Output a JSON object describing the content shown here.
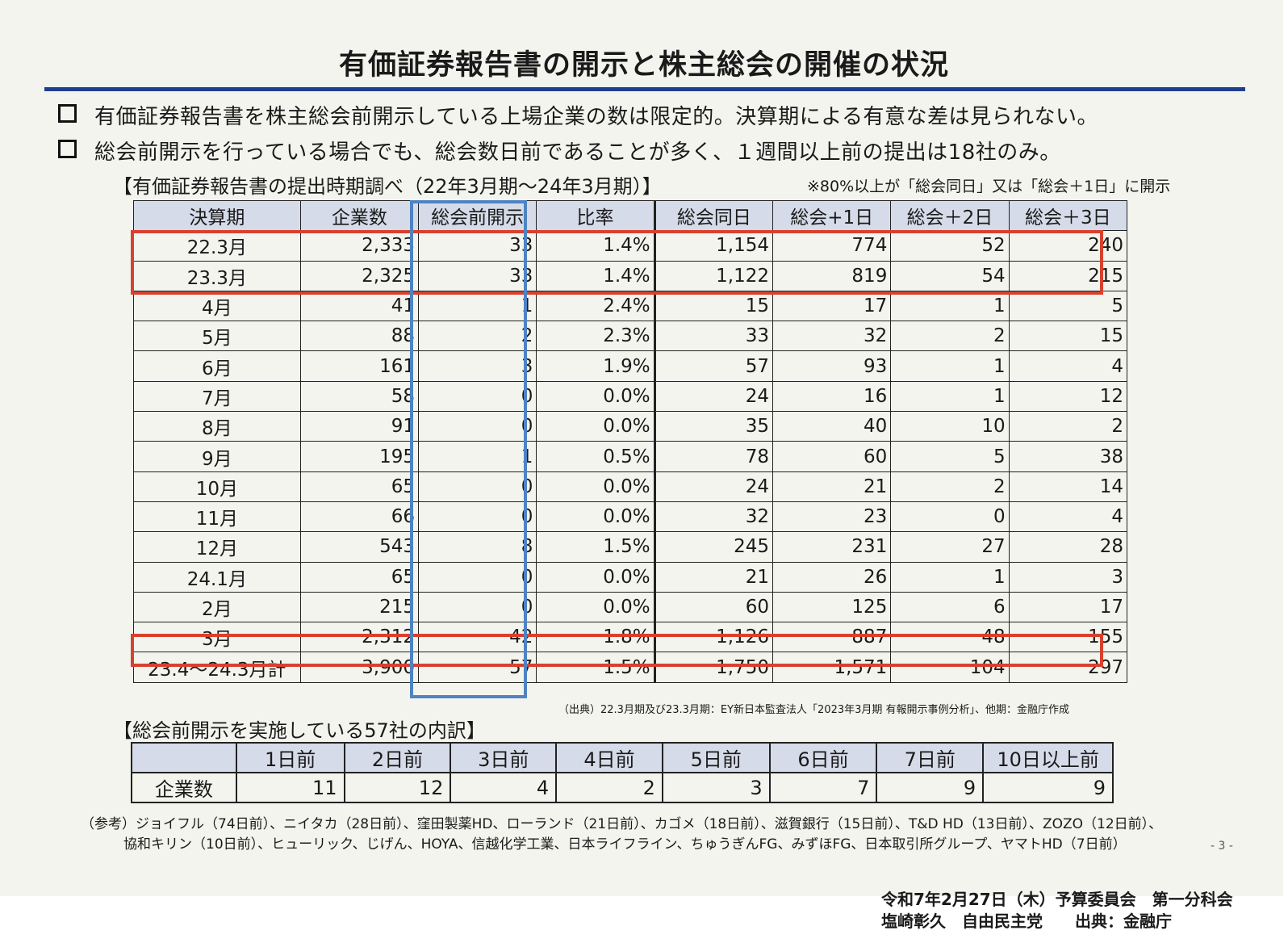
{
  "title": "有価証券報告書の開示と株主総会の開催の状況",
  "bullets": [
    "有価証券報告書を株主総会前開示している上場企業の数は限定的。決算期による有意な差は見られない。",
    "総会前開示を行っている場合でも、総会数日前であることが多く、１週間以上前の提出は18社のみ。"
  ],
  "main_table": {
    "heading": "【有価証券報告書の提出時期調べ（22年3月期～24年3月期）】",
    "note": "※80%以上が「総会同日」又は「総会＋1日」に開示",
    "columns": [
      "決算期",
      "企業数",
      "総会前開示",
      "比率",
      "総会同日",
      "総会+1日",
      "総会＋2日",
      "総会＋3日"
    ],
    "rows": [
      [
        "22.3月",
        "2,333",
        "33",
        "1.4%",
        "1,154",
        "774",
        "52",
        "240"
      ],
      [
        "23.3月",
        "2,325",
        "33",
        "1.4%",
        "1,122",
        "819",
        "54",
        "215"
      ],
      [
        "4月",
        "41",
        "1",
        "2.4%",
        "15",
        "17",
        "1",
        "5"
      ],
      [
        "5月",
        "88",
        "2",
        "2.3%",
        "33",
        "32",
        "2",
        "15"
      ],
      [
        "6月",
        "161",
        "3",
        "1.9%",
        "57",
        "93",
        "1",
        "4"
      ],
      [
        "7月",
        "58",
        "0",
        "0.0%",
        "24",
        "16",
        "1",
        "12"
      ],
      [
        "8月",
        "91",
        "0",
        "0.0%",
        "35",
        "40",
        "10",
        "2"
      ],
      [
        "9月",
        "195",
        "1",
        "0.5%",
        "78",
        "60",
        "5",
        "38"
      ],
      [
        "10月",
        "65",
        "0",
        "0.0%",
        "24",
        "21",
        "2",
        "14"
      ],
      [
        "11月",
        "66",
        "0",
        "0.0%",
        "32",
        "23",
        "0",
        "4"
      ],
      [
        "12月",
        "543",
        "8",
        "1.5%",
        "245",
        "231",
        "27",
        "28"
      ],
      [
        "24.1月",
        "65",
        "0",
        "0.0%",
        "21",
        "26",
        "1",
        "3"
      ],
      [
        "2月",
        "215",
        "0",
        "0.0%",
        "60",
        "125",
        "6",
        "17"
      ],
      [
        "3月",
        "2,312",
        "42",
        "1.8%",
        "1,126",
        "887",
        "48",
        "155"
      ],
      [
        "23.4～24.3月計",
        "3,900",
        "57",
        "1.5%",
        "1,750",
        "1,571",
        "104",
        "297"
      ]
    ],
    "source": "（出典）22.3月期及び23.3月期：EY新日本監査法人「2023年3月期 有報開示事例分析」、他期：金融庁作成"
  },
  "breakdown_table": {
    "heading": "【総会前開示を実施している57社の内訳】",
    "columns": [
      "",
      "1日前",
      "2日前",
      "3日前",
      "4日前",
      "5日前",
      "6日前",
      "7日前",
      "10日以上前"
    ],
    "row_label": "企業数",
    "values": [
      "11",
      "12",
      "4",
      "2",
      "3",
      "7",
      "9",
      "9"
    ]
  },
  "reference": [
    "（参考）ジョイフル（74日前）、ニイタカ（28日前）、窪田製薬HD、ローランド（21日前）、カゴメ（18日前）、滋賀銀行（15日前）、T&D HD（13日前）、ZOZO（12日前）、",
    "協和キリン（10日前）、ヒューリック、じげん、HOYA、信越化学工業、日本ライフライン、ちゅうぎんFG、みずほFG、日本取引所グループ、ヤマトHD（7日前）"
  ],
  "page_number": "- 3 -",
  "footer": [
    "令和7年2月27日（木）予算委員会　第一分科会",
    "塩崎彰久　自由民主党　　出典：金融庁"
  ],
  "colors": {
    "title_rule": "#1f3f8f",
    "highlight_red": "#d8412f",
    "highlight_blue": "#4f83c2",
    "header_bg": "#d5dbe8"
  }
}
